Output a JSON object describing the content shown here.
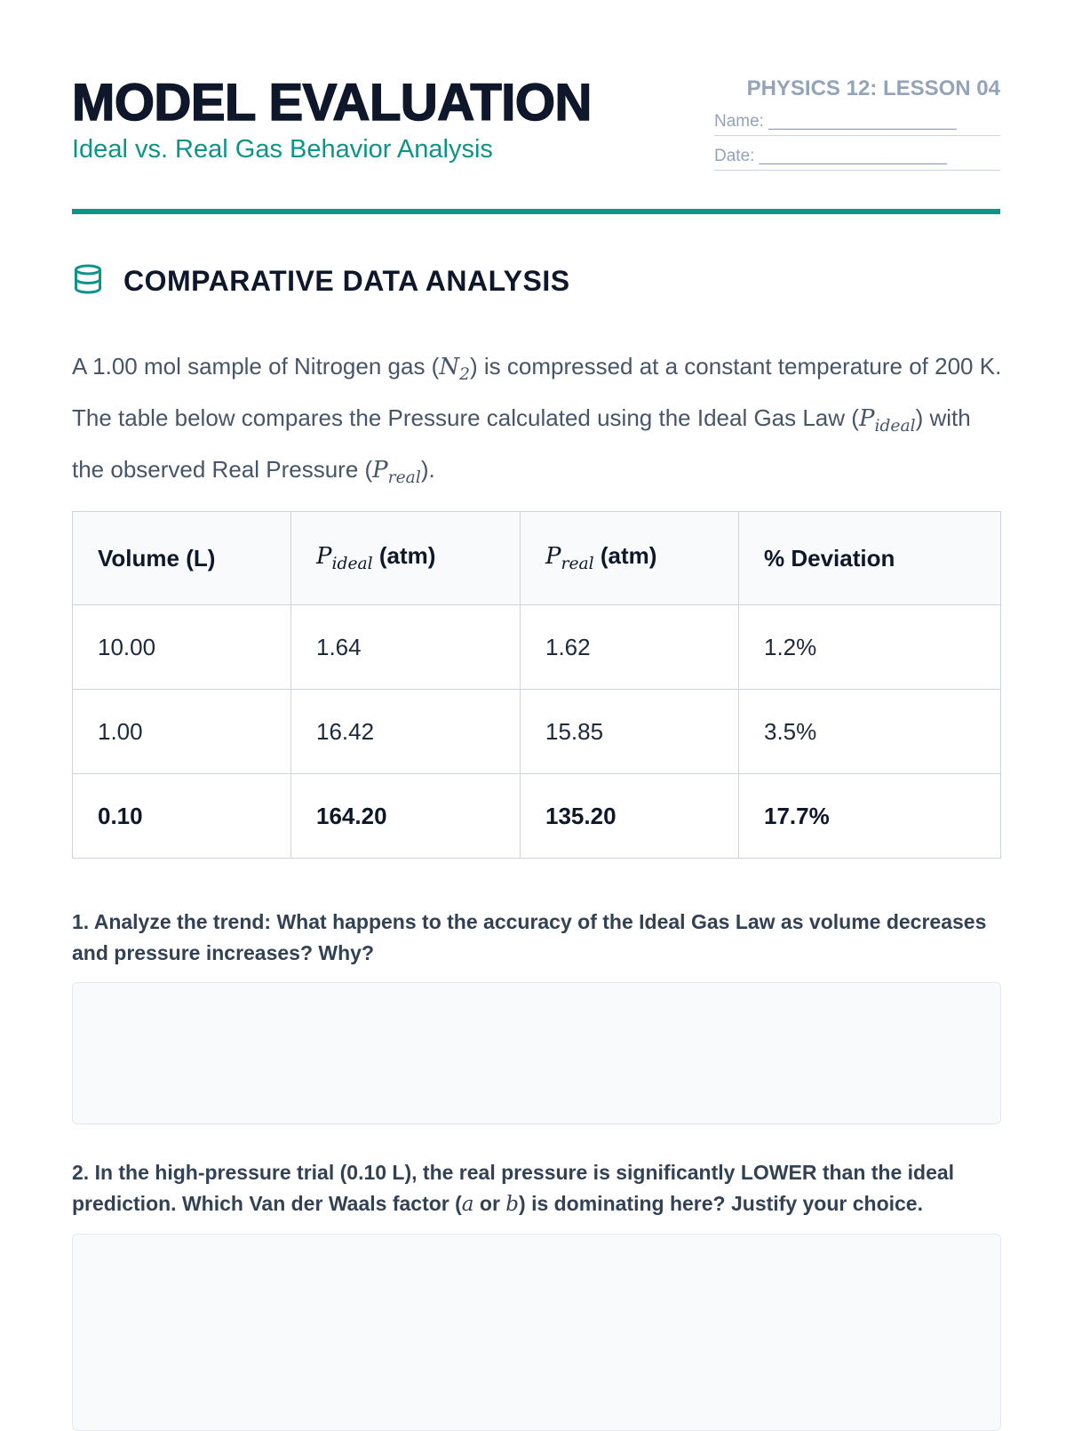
{
  "header": {
    "title": "MODEL EVALUATION",
    "subtitle": "Ideal vs. Real Gas Behavior Analysis",
    "course": "PHYSICS 12: LESSON 04",
    "name_label": "Name: ____________________",
    "date_label": "Date: ____________________"
  },
  "section": {
    "icon": "database-icon",
    "title": "COMPARATIVE DATA ANALYSIS"
  },
  "intro": {
    "part1": "A 1.00 mol sample of Nitrogen gas (",
    "n2_base": "N",
    "n2_sub": "2",
    "part2": ") is compressed at a constant temperature of 200 K. The table below compares the Pressure calculated using the Ideal Gas Law (",
    "pideal_base": "P",
    "pideal_sub": "ideal",
    "part3": ") with the observed Real Pressure (",
    "preal_base": "P",
    "preal_sub": "real",
    "part4": ")."
  },
  "table": {
    "headers": {
      "volume": "Volume (L)",
      "p": "P",
      "ideal_sub": "ideal",
      "real_sub": "real",
      "atm": " (atm)",
      "deviation": "% Deviation"
    },
    "rows": [
      [
        "10.00",
        "1.64",
        "1.62",
        "1.2%"
      ],
      [
        "1.00",
        "16.42",
        "15.85",
        "3.5%"
      ],
      [
        "0.10",
        "164.20",
        "135.20",
        "17.7%"
      ]
    ]
  },
  "questions": {
    "q1": "1. Analyze the trend: What happens to the accuracy of the Ideal Gas Law as volume decreases and pressure increases? Why?",
    "q2_part1": "2. In the high-pressure trial (0.10 L), the real pressure is significantly LOWER than the ideal prediction. Which Van der Waals factor (",
    "q2_a": "a",
    "q2_or": " or ",
    "q2_b": "b",
    "q2_part2": ") is dominating here? Justify your choice."
  },
  "colors": {
    "accent": "#0d9488",
    "title": "#0f172a",
    "muted": "#94a3b8"
  }
}
